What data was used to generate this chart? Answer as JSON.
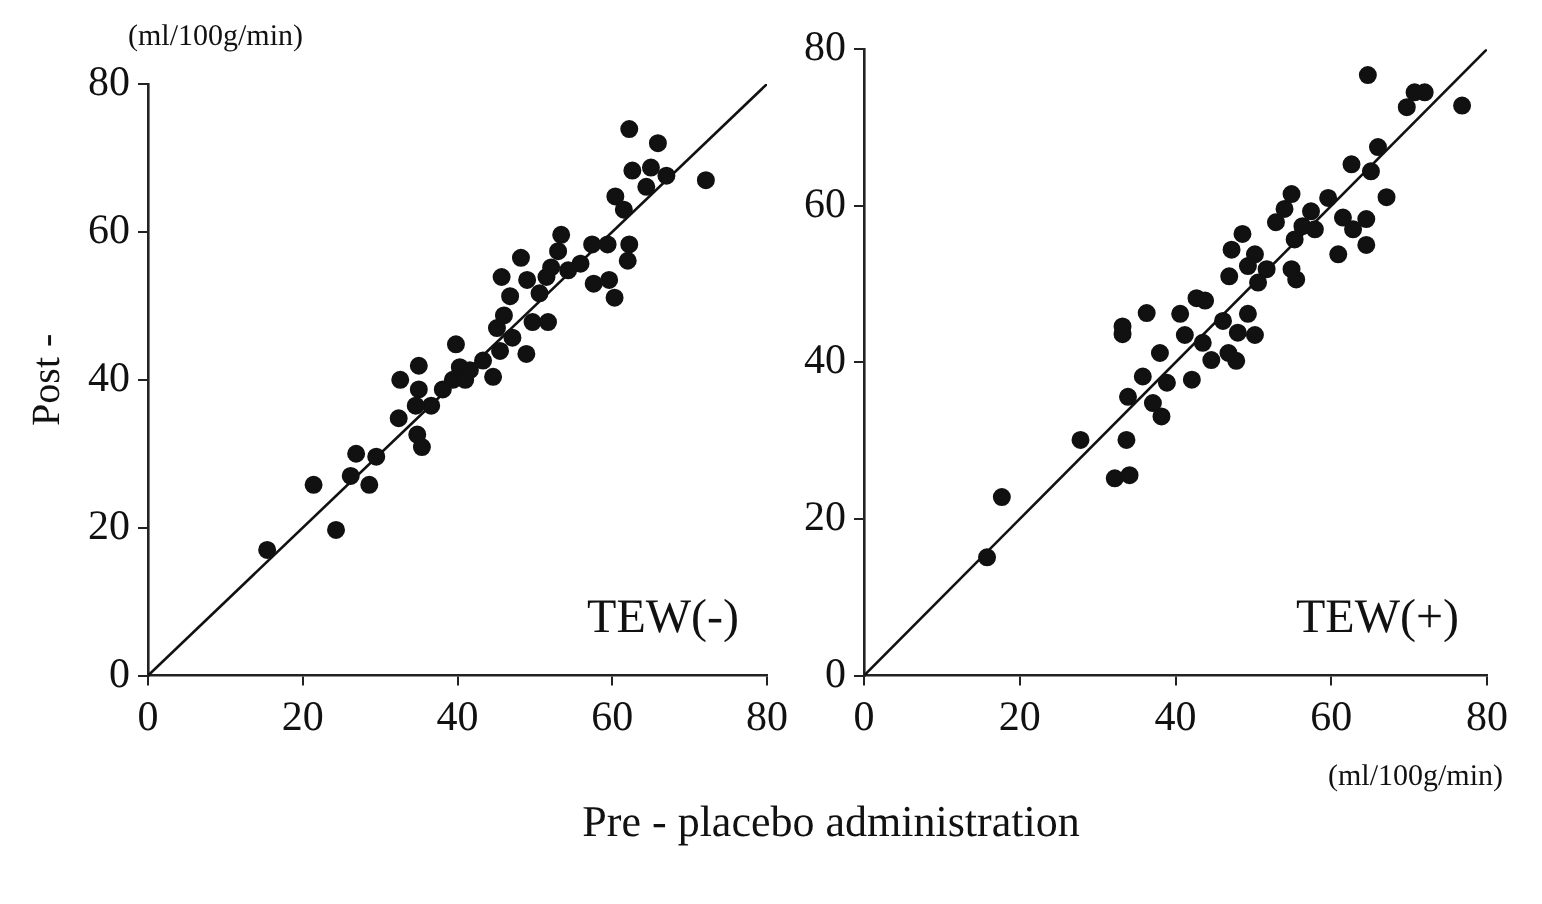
{
  "chart_data": [
    {
      "type": "scatter",
      "ylabel": "Post -",
      "xlim": [
        0,
        80
      ],
      "ylim": [
        0,
        80
      ],
      "xticks": [
        0,
        20,
        40,
        60,
        80
      ],
      "yticks": [
        0,
        20,
        40,
        60,
        80
      ],
      "grid": false,
      "legend": false,
      "marker": "circle",
      "annotations": [
        "TEW(-)",
        "(ml/100g/min)"
      ],
      "series": [
        {
          "color": "#111111",
          "x": [
            15.4,
            21.4,
            24.3,
            26.2,
            26.9,
            28.6,
            29.5,
            32.4,
            32.6,
            35.0,
            35.0,
            34.6,
            34.8,
            35.4,
            36.6,
            38.1,
            39.4,
            39.8,
            40.3,
            41.0,
            41.6,
            44.6,
            43.3,
            45.1,
            45.5,
            46.0,
            47.1,
            48.9,
            46.8,
            45.7,
            48.2,
            49.0,
            49.7,
            51.7,
            50.6,
            51.5,
            52.1,
            53.0,
            53.4,
            54.3,
            55.9,
            57.4,
            57.6,
            59.4,
            59.6,
            60.3,
            60.4,
            61.5,
            62.2,
            62.0,
            62.2,
            62.6,
            64.4,
            65.0,
            65.9,
            67.0,
            72.1
          ],
          "values": [
            17.0,
            25.8,
            19.7,
            27.0,
            30.0,
            25.8,
            29.6,
            34.8,
            40.0,
            41.9,
            38.7,
            36.5,
            32.6,
            30.9,
            36.5,
            38.7,
            40.0,
            44.8,
            41.7,
            40.0,
            41.3,
            40.4,
            42.6,
            47.0,
            43.9,
            48.7,
            45.7,
            43.5,
            51.3,
            53.9,
            56.5,
            53.5,
            47.8,
            47.8,
            51.7,
            53.9,
            55.2,
            57.4,
            59.6,
            54.8,
            55.7,
            58.3,
            53.0,
            58.3,
            53.5,
            51.1,
            64.8,
            63.0,
            58.3,
            56.1,
            73.9,
            68.3,
            66.1,
            68.7,
            72.0,
            67.6,
            67.0
          ]
        },
        {
          "type": "line",
          "color": "#111111",
          "marker": "none",
          "x": [
            0,
            80
          ],
          "values": [
            0,
            80
          ]
        }
      ]
    },
    {
      "type": "scatter",
      "xlabel": "Pre - placebo administration",
      "xlim": [
        0,
        80
      ],
      "ylim": [
        0,
        80
      ],
      "xticks": [
        0,
        20,
        40,
        60,
        80
      ],
      "yticks": [
        0,
        20,
        40,
        60,
        80
      ],
      "grid": false,
      "legend": false,
      "marker": "circle",
      "annotations": [
        "TEW(+)",
        "(ml/100g/min)"
      ],
      "series": [
        {
          "color": "#111111",
          "x": [
            15.8,
            17.7,
            27.8,
            32.2,
            34.1,
            33.7,
            33.2,
            33.2,
            33.9,
            36.3,
            35.8,
            37.1,
            38.2,
            38.0,
            38.9,
            40.6,
            41.2,
            42.1,
            42.7,
            43.8,
            43.5,
            44.6,
            46.1,
            46.8,
            47.8,
            48.0,
            49.3,
            50.2,
            46.9,
            47.2,
            48.6,
            49.3,
            50.2,
            50.6,
            51.7,
            52.9,
            54.0,
            54.9,
            55.3,
            54.9,
            55.5,
            56.3,
            57.4,
            57.9,
            59.6,
            60.9,
            61.5,
            62.6,
            62.8,
            64.5,
            64.5,
            65.1,
            66.0,
            67.1,
            64.7,
            69.7,
            70.7,
            72.0,
            76.8
          ],
          "values": [
            15.1,
            22.8,
            30.1,
            25.2,
            25.6,
            30.1,
            44.6,
            43.6,
            35.6,
            46.3,
            38.2,
            34.8,
            33.1,
            41.2,
            37.4,
            46.2,
            43.5,
            37.8,
            48.2,
            47.9,
            42.5,
            40.3,
            45.3,
            41.2,
            40.2,
            43.8,
            46.2,
            43.5,
            51.0,
            54.4,
            56.4,
            52.3,
            53.8,
            50.2,
            51.9,
            57.9,
            59.6,
            61.5,
            55.7,
            51.9,
            50.6,
            57.4,
            59.3,
            57.0,
            61.0,
            53.8,
            58.5,
            65.3,
            57.0,
            58.3,
            55.0,
            64.4,
            67.5,
            61.1,
            76.7,
            72.6,
            74.5,
            74.5,
            72.8
          ]
        },
        {
          "type": "line",
          "color": "#111111",
          "marker": "none",
          "x": [
            0,
            80
          ],
          "values": [
            0,
            80
          ]
        }
      ]
    }
  ]
}
